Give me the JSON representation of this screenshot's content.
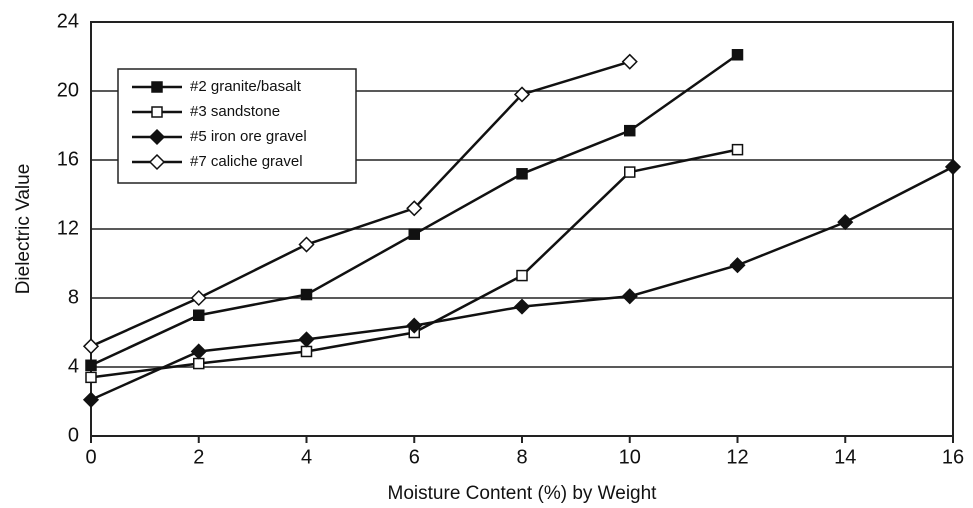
{
  "chart_data": {
    "type": "line",
    "x_label": "Moisture Content (%) by Weight",
    "y_label": "Dielectric Value",
    "xlim": [
      0,
      16
    ],
    "ylim": [
      0,
      24
    ],
    "xticks": [
      0,
      2,
      4,
      6,
      8,
      10,
      12,
      14,
      16
    ],
    "yticks": [
      0,
      4,
      8,
      12,
      16,
      20,
      24
    ],
    "grid": true,
    "legend": "upper left",
    "series": [
      {
        "name": "#2 granite/basalt",
        "color": "#111111",
        "marker": "square",
        "filled": true,
        "x": [
          0,
          2,
          4,
          6,
          8,
          10,
          12
        ],
        "values": [
          4.1,
          7.0,
          8.2,
          11.7,
          15.2,
          17.7,
          22.1
        ]
      },
      {
        "name": "#3 sandstone",
        "color": "#111111",
        "marker": "square",
        "filled": false,
        "x": [
          0,
          2,
          4,
          6,
          8,
          10,
          12
        ],
        "values": [
          3.4,
          4.2,
          4.9,
          6.0,
          9.3,
          15.3,
          16.6
        ]
      },
      {
        "name": "#5 iron ore gravel",
        "color": "#111111",
        "marker": "diamond",
        "filled": true,
        "x": [
          0,
          2,
          4,
          6,
          8,
          10,
          12,
          14,
          16
        ],
        "values": [
          2.1,
          4.9,
          5.6,
          6.4,
          7.5,
          8.1,
          9.9,
          12.4,
          15.6
        ]
      },
      {
        "name": "#7 caliche gravel",
        "color": "#111111",
        "marker": "diamond",
        "filled": false,
        "x": [
          0,
          2,
          4,
          6,
          8,
          10
        ],
        "values": [
          5.2,
          8.0,
          11.1,
          13.2,
          19.8,
          21.7
        ]
      }
    ]
  }
}
